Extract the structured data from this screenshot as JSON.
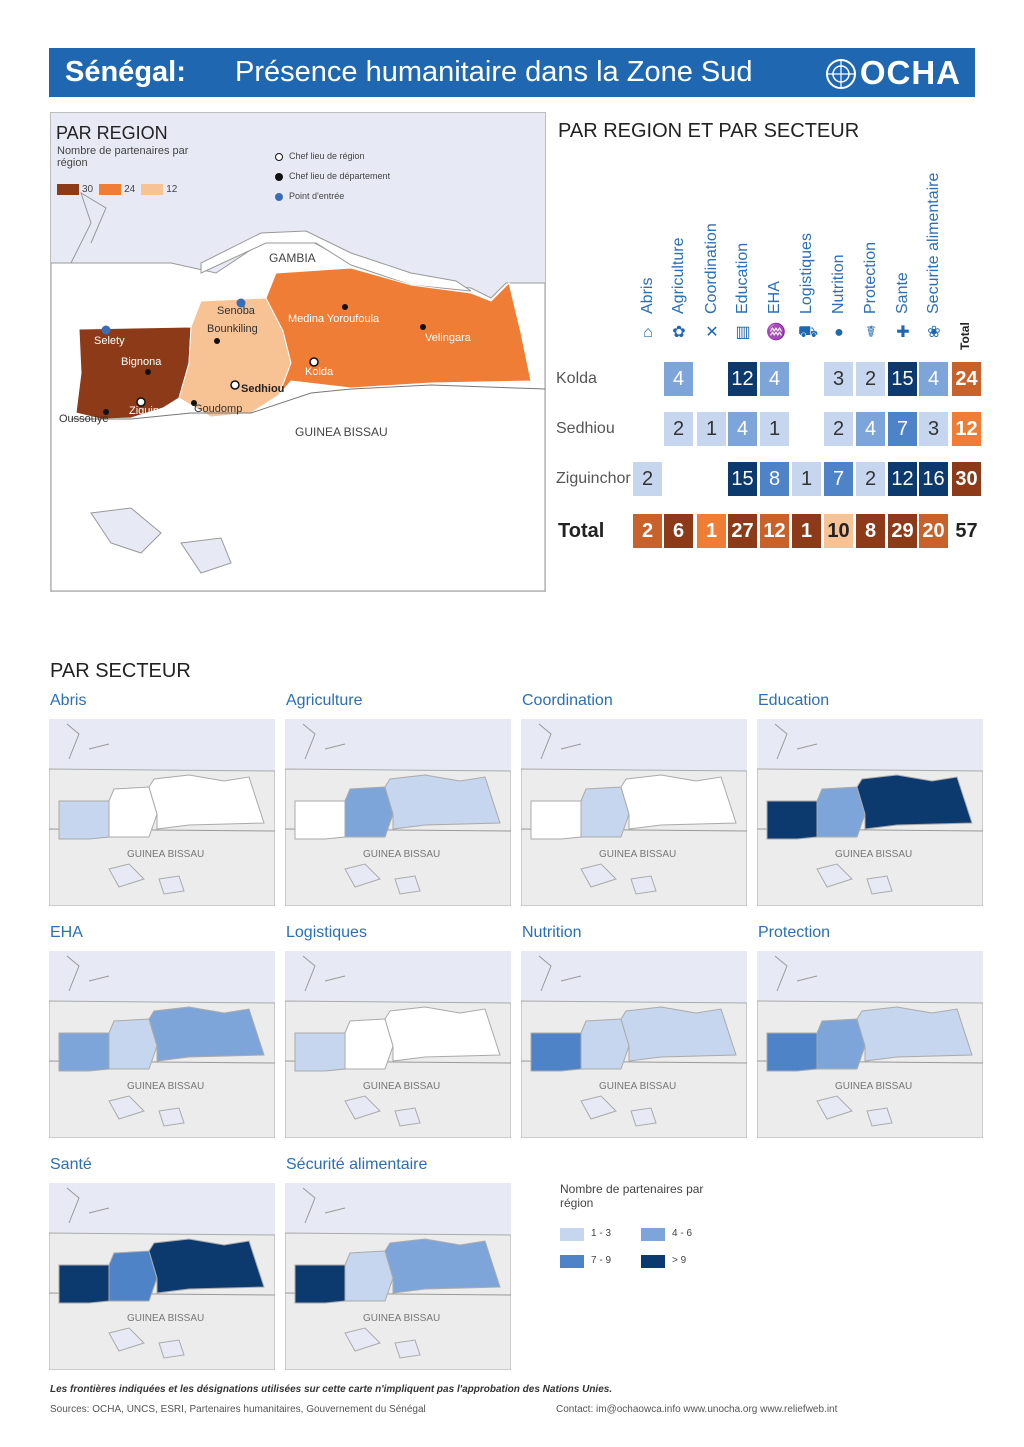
{
  "header": {
    "country": "Sénégal:",
    "title": "Présence humanitaire dans la Zone Sud",
    "logo": "OCHA"
  },
  "par_region": {
    "title": "PAR REGION",
    "legend_title": "Nombre de partenaires par région",
    "legend": [
      {
        "label": "30",
        "color": "#8c3a18"
      },
      {
        "label": "24",
        "color": "#ef7d35"
      },
      {
        "label": "12",
        "color": "#f7c294"
      }
    ],
    "symbols": [
      {
        "label": "Chef lieu de région",
        "icon": "capital-icon"
      },
      {
        "label": "Chef lieu de département",
        "icon": "town-dot-icon"
      },
      {
        "label": "Point d'entrée",
        "icon": "entry-point-icon"
      }
    ],
    "places": {
      "gambia": "GAMBIA",
      "guinea_bissau": "GUINEA BISSAU",
      "senoba": "Senoba",
      "bounkiling": "Bounkiling",
      "medina": "Medina Yoroufoula",
      "velingara": "Velingara",
      "kolda": "Kolda",
      "sedhiou": "Sedhiou",
      "selety": "Selety",
      "bignona": "Bignona",
      "ziguinchor": "Ziguinchor",
      "goudomp": "Goudomp",
      "oussouye": "Oussouye"
    }
  },
  "par_region_secteur": {
    "title": "PAR REGION ET PAR SECTEUR",
    "columns": [
      "Abris",
      "Agriculture",
      "Coordination",
      "Education",
      "EHA",
      "Logistiques",
      "Nutrition",
      "Protection",
      "Sante",
      "Securite alimentaire"
    ],
    "total_label": "Total",
    "column_icons": [
      "shelter-icon",
      "agriculture-icon",
      "coordination-icon",
      "education-icon",
      "water-icon",
      "logistics-icon",
      "nutrition-icon",
      "protection-icon",
      "health-icon",
      "food-security-icon"
    ],
    "rows": [
      {
        "name": "Kolda",
        "values": [
          "",
          "4",
          "",
          "12",
          "4",
          "",
          "3",
          "2",
          "15",
          "4"
        ],
        "total": "24"
      },
      {
        "name": "Sedhiou",
        "values": [
          "",
          "2",
          "1",
          "4",
          "1",
          "",
          "2",
          "4",
          "7",
          "3"
        ],
        "total": "12"
      },
      {
        "name": "Ziguinchor",
        "values": [
          "2",
          "",
          "",
          "15",
          "8",
          "1",
          "7",
          "2",
          "12",
          "16"
        ],
        "total": "30"
      }
    ],
    "totals": {
      "label": "Total",
      "values": [
        "2",
        "6",
        "1",
        "27",
        "12",
        "1",
        "10",
        "8",
        "29",
        "20"
      ],
      "grand_total": "57"
    }
  },
  "par_secteur": {
    "title": "PAR SECTEUR",
    "country_label": "GUINEA BISSAU",
    "maps": [
      {
        "name": "Abris",
        "fills": [
          "#c6d6ee",
          "#ffffff",
          "#ffffff"
        ]
      },
      {
        "name": "Agriculture",
        "fills": [
          "#ffffff",
          "#7ea5d9",
          "#c6d6ee"
        ]
      },
      {
        "name": "Coordination",
        "fills": [
          "#ffffff",
          "#c6d6ee",
          "#ffffff"
        ]
      },
      {
        "name": "Education",
        "fills": [
          "#0d3a6e",
          "#7ea5d9",
          "#0d3a6e"
        ]
      },
      {
        "name": "EHA",
        "fills": [
          "#7ea5d9",
          "#c6d6ee",
          "#7ea5d9"
        ]
      },
      {
        "name": "Logistiques",
        "fills": [
          "#c6d6ee",
          "#ffffff",
          "#ffffff"
        ]
      },
      {
        "name": "Nutrition",
        "fills": [
          "#4e83c8",
          "#c6d6ee",
          "#c6d6ee"
        ]
      },
      {
        "name": "Protection",
        "fills": [
          "#4e83c8",
          "#7ea5d9",
          "#c6d6ee"
        ]
      },
      {
        "name": "Santé",
        "fills": [
          "#0d3a6e",
          "#4e83c8",
          "#0d3a6e"
        ]
      },
      {
        "name": "Sécurité alimentaire",
        "fills": [
          "#0d3a6e",
          "#c6d6ee",
          "#7ea5d9"
        ]
      }
    ],
    "legend_title": "Nombre de partenaires par région",
    "legend": [
      {
        "label": "1 - 3",
        "color": "#c6d6ee"
      },
      {
        "label": "4 - 6",
        "color": "#7ea5d9"
      },
      {
        "label": "7 - 9",
        "color": "#4e83c8"
      },
      {
        "label": "> 9",
        "color": "#0d3a6e"
      }
    ]
  },
  "footer": {
    "disclaimer": "Les frontières indiquées et les désignations utilisées sur cette carte n'impliquent pas l'approbation des Nations Unies.",
    "sources": "Sources: OCHA, UNCS, ESRI, Partenaires humanitaires, Gouvernement du Sénégal",
    "contact": "Contact: im@ochaowca.info www.unocha.org www.reliefweb.int"
  }
}
